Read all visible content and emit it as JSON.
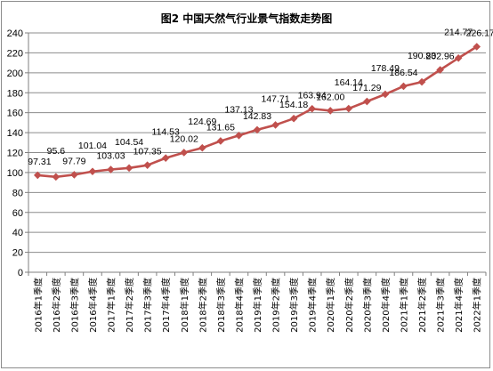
{
  "chart_data": {
    "type": "line",
    "title": "图2  中国天然气行业景气指数走势图",
    "xlabel": "",
    "ylabel": "",
    "ylim": [
      0,
      240
    ],
    "yticks": [
      0,
      20,
      40,
      60,
      80,
      100,
      120,
      140,
      160,
      180,
      200,
      220,
      240
    ],
    "grid": true,
    "legend": "none",
    "color": "#c0504d",
    "categories": [
      "2016年1季度",
      "2016年2季度",
      "2016年3季度",
      "2016年4季度",
      "2017年1季度",
      "2017年2季度",
      "2017年3季度",
      "2017年4季度",
      "2018年1季度",
      "2018年2季度",
      "2018年3季度",
      "2018年4季度",
      "2019年1季度",
      "2019年2季度",
      "2019年3季度",
      "2019年4季度",
      "2020年1季度",
      "2020年2季度",
      "2020年3季度",
      "2020年4季度",
      "2021年1季度",
      "2021年2季度",
      "2021年3季度",
      "2021年4季度",
      "2022年1季度"
    ],
    "values": [
      97.31,
      95.6,
      97.79,
      101.04,
      103.03,
      104.54,
      107.35,
      114.53,
      120.02,
      124.69,
      131.65,
      137.13,
      142.83,
      147.71,
      154.18,
      163.94,
      162.0,
      164.14,
      171.29,
      178.49,
      186.54,
      190.83,
      202.96,
      214.77,
      226.17
    ],
    "labels": [
      "97.31",
      "95.6",
      "97.79",
      "101.04",
      "103.03",
      "104.54",
      "107.35",
      "114.53",
      "120.02",
      "124.69",
      "131.65",
      "137.13",
      "142.83",
      "147.71",
      "154.18",
      "163.94",
      "162.00",
      "164.14",
      "171.29",
      "178.49",
      "186.54",
      "190.83",
      "202.96",
      "214.77",
      "226.17"
    ]
  }
}
